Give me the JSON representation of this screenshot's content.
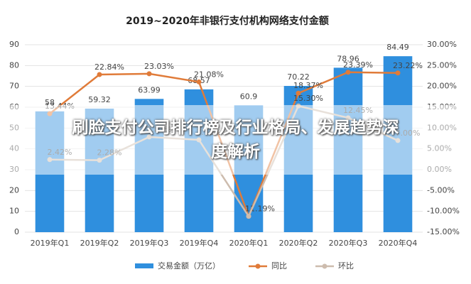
{
  "chart_data": {
    "type": "bar",
    "title": "2019~2020年非银行支付机构网络支付金额",
    "categories": [
      "2019年Q1",
      "2019年Q2",
      "2019年Q3",
      "2019年Q4",
      "2020年Q1",
      "2020年Q2",
      "2020年Q3",
      "2020年Q4"
    ],
    "series": [
      {
        "name": "交易金额（万亿）",
        "type": "bar",
        "color": "#2f8fde",
        "values": [
          58,
          59.32,
          63.99,
          68.57,
          60.9,
          70.22,
          78.96,
          84.49
        ]
      },
      {
        "name": "同比",
        "type": "line",
        "axis": "y2",
        "color": "#e07b39",
        "values": [
          13.44,
          22.84,
          23.03,
          21.08,
          -11.19,
          18.37,
          23.39,
          23.22
        ],
        "value_labels": [
          "13.44%",
          "22.84%",
          "23.03%",
          "21.08%",
          "-11.19%",
          "18.37%",
          "23.39%",
          "23.22%"
        ]
      },
      {
        "name": "环比",
        "type": "line",
        "axis": "y2",
        "color": "#cdbcae",
        "values": [
          2.42,
          2.28,
          7.87,
          7.16,
          -11.19,
          15.3,
          12.45,
          7.0
        ],
        "value_labels": [
          "2.42%",
          "2.28%",
          "7.87%",
          "7.16%",
          null,
          "15.30%",
          "12.45%",
          "7.00%"
        ]
      }
    ],
    "ylim": [
      0,
      90
    ],
    "yticks": [
      0,
      10,
      20,
      30,
      40,
      50,
      60,
      70,
      80,
      90
    ],
    "y2lim": [
      -15,
      30
    ],
    "y2ticks": [
      {
        "value": -15,
        "label": "-15.00%"
      },
      {
        "value": -10,
        "label": "-10.00%"
      },
      {
        "value": -5,
        "label": "-5.00%"
      },
      {
        "value": 0,
        "label": "0.00%"
      },
      {
        "value": 5,
        "label": "5.00%"
      },
      {
        "value": 10,
        "label": "10.00%"
      },
      {
        "value": 15,
        "label": "15.00%"
      },
      {
        "value": 20,
        "label": "20.00%"
      },
      {
        "value": 25,
        "label": "25.00%"
      },
      {
        "value": 30,
        "label": "30.00%"
      }
    ],
    "grid": true
  },
  "overlay_title": "刷脸支付公司排行榜及行业格局、发展趋势深度解析"
}
